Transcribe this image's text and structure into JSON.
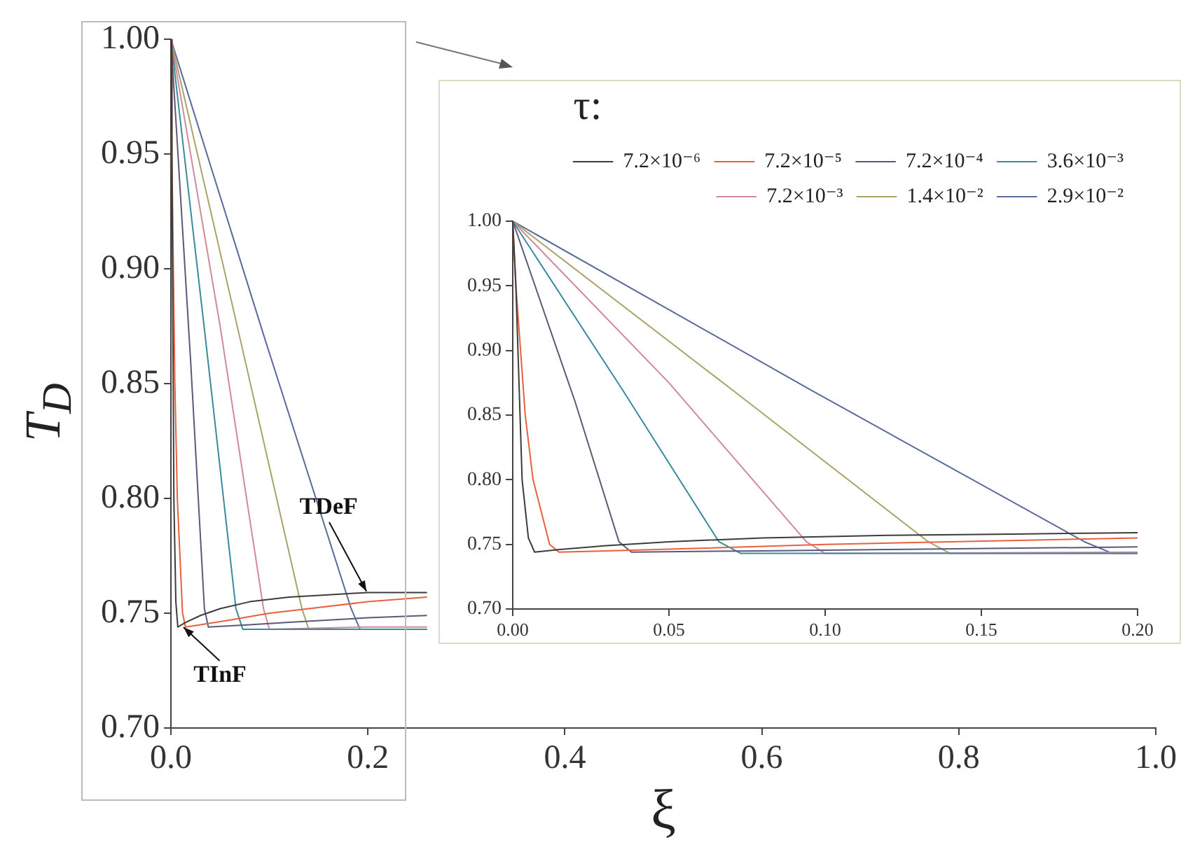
{
  "chart_data": [
    {
      "type": "line",
      "xlabel": "ξ",
      "ylabel": "T$_{D}$",
      "xlim": [
        0,
        1
      ],
      "ylim": [
        0.7,
        1.0
      ],
      "xticks": [
        {
          "value": 0,
          "label": "0.0"
        },
        0.2,
        0.4,
        0.6,
        0.8,
        {
          "value": 1,
          "label": "1.0"
        }
      ],
      "yticks": [
        {
          "value": 0.7,
          "label": "0.70"
        },
        0.75,
        {
          "value": 0.8,
          "label": "0.80"
        },
        0.85,
        {
          "value": 0.9,
          "label": "0.90"
        },
        0.95,
        {
          "value": 1,
          "label": "1.00"
        }
      ],
      "grid": false,
      "legend": false,
      "marker": "none",
      "line_style": "solid",
      "annotations": [
        {
          "text": "TDeF",
          "x": 0.2,
          "y": 0.758
        },
        {
          "text": "TInF",
          "x": 0.01,
          "y": 0.745
        }
      ],
      "series": [
        {
          "color": "#3c3c3c",
          "x": [
            0,
            0.001,
            0.003,
            0.005,
            0.007,
            0.015,
            0.03,
            0.05,
            0.08,
            0.12,
            0.16,
            0.2,
            0.26
          ],
          "values": [
            1,
            0.95,
            0.8,
            0.755,
            0.744,
            0.746,
            0.749,
            0.752,
            0.755,
            0.757,
            0.758,
            0.759,
            0.759
          ]
        },
        {
          "color": "#e8603c",
          "x": [
            0,
            0.001,
            0.004,
            0.0065,
            0.0118,
            0.0148,
            0.03,
            0.06,
            0.1,
            0.14,
            0.2,
            0.26
          ],
          "values": [
            1,
            0.95,
            0.85,
            0.8,
            0.75,
            0.744,
            0.745,
            0.747,
            0.75,
            0.752,
            0.755,
            0.757
          ]
        },
        {
          "color": "#5c5878",
          "x": [
            0,
            0.02,
            0.034,
            0.038,
            0.08,
            0.12,
            0.2,
            0.26
          ],
          "values": [
            1,
            0.86,
            0.752,
            0.744,
            0.745,
            0.746,
            0.748,
            0.749
          ]
        },
        {
          "color": "#3a8aa0",
          "x": [
            0,
            0.035,
            0.066,
            0.073,
            0.2,
            0.26
          ],
          "values": [
            1,
            0.87,
            0.752,
            0.743,
            0.743,
            0.743
          ]
        },
        {
          "color": "#d08a98",
          "x": [
            0,
            0.05,
            0.094,
            0.1,
            0.2,
            0.26
          ],
          "values": [
            1,
            0.875,
            0.752,
            0.743,
            0.744,
            0.744
          ]
        },
        {
          "color": "#a8a468",
          "x": [
            0,
            0.07,
            0.133,
            0.14,
            0.2,
            0.26
          ],
          "values": [
            1,
            0.87,
            0.752,
            0.743,
            0.743,
            0.743
          ]
        },
        {
          "color": "#5a6a9a",
          "x": [
            0,
            0.095,
            0.183,
            0.192,
            0.2,
            0.26
          ],
          "values": [
            1,
            0.87,
            0.752,
            0.743,
            0.743,
            0.743
          ]
        }
      ]
    },
    {
      "type": "line",
      "legend_title": "τ:",
      "xlim": [
        0,
        0.2
      ],
      "ylim": [
        0.7,
        1.0
      ],
      "xticks": [
        {
          "value": 0,
          "label": "0.00"
        },
        0.05,
        {
          "value": 0.1,
          "label": "0.10"
        },
        0.15,
        {
          "value": 0.2,
          "label": "0.20"
        }
      ],
      "yticks": [
        {
          "value": 0.7,
          "label": "0.70"
        },
        0.75,
        {
          "value": 0.8,
          "label": "0.80"
        },
        0.85,
        {
          "value": 0.9,
          "label": "0.90"
        },
        0.95,
        {
          "value": 1,
          "label": "1.00"
        }
      ],
      "grid": false,
      "legend": "top right",
      "marker": "none",
      "line_style": "solid",
      "series": [
        {
          "name": "7.2×10⁻⁶",
          "color": "#3c3c3c",
          "x": [
            0,
            0.001,
            0.003,
            0.005,
            0.007,
            0.015,
            0.03,
            0.05,
            0.08,
            0.12,
            0.16,
            0.2
          ],
          "values": [
            1,
            0.95,
            0.8,
            0.755,
            0.744,
            0.746,
            0.749,
            0.752,
            0.755,
            0.757,
            0.758,
            0.759
          ]
        },
        {
          "name": "7.2×10⁻⁵",
          "color": "#e8603c",
          "x": [
            0,
            0.001,
            0.004,
            0.0065,
            0.0118,
            0.0148,
            0.03,
            0.06,
            0.1,
            0.14,
            0.2
          ],
          "values": [
            1,
            0.95,
            0.85,
            0.8,
            0.75,
            0.744,
            0.745,
            0.747,
            0.75,
            0.752,
            0.755
          ]
        },
        {
          "name": "7.2×10⁻⁴",
          "color": "#5c5878",
          "x": [
            0,
            0.02,
            0.034,
            0.038,
            0.08,
            0.12,
            0.2
          ],
          "values": [
            1,
            0.86,
            0.752,
            0.744,
            0.745,
            0.746,
            0.748
          ]
        },
        {
          "name": "3.6×10⁻³",
          "color": "#3a8aa0",
          "x": [
            0,
            0.035,
            0.066,
            0.073,
            0.2
          ],
          "values": [
            1,
            0.87,
            0.752,
            0.743,
            0.743
          ]
        },
        {
          "name": "7.2×10⁻³",
          "color": "#d08a98",
          "x": [
            0,
            0.05,
            0.094,
            0.1,
            0.2
          ],
          "values": [
            1,
            0.875,
            0.752,
            0.743,
            0.744
          ]
        },
        {
          "name": "1.4×10⁻²",
          "color": "#a8a468",
          "x": [
            0,
            0.07,
            0.133,
            0.14,
            0.2
          ],
          "values": [
            1,
            0.87,
            0.752,
            0.743,
            0.743
          ]
        },
        {
          "name": "2.9×10⁻²",
          "color": "#5a6a9a",
          "x": [
            0,
            0.095,
            0.183,
            0.192,
            0.2
          ],
          "values": [
            1,
            0.87,
            0.752,
            0.743,
            0.743
          ]
        }
      ]
    }
  ]
}
